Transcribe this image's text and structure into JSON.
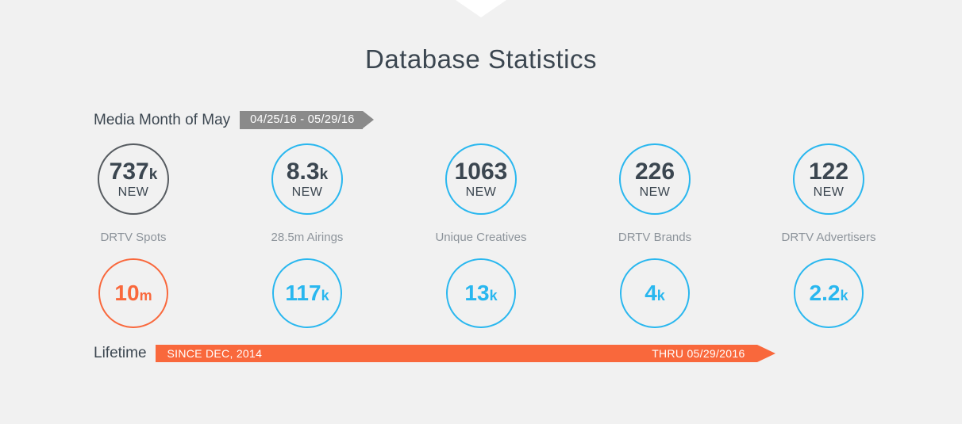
{
  "page": {
    "title": "Database Statistics"
  },
  "media_month": {
    "label": "Media Month of May",
    "date_range": "04/25/16 - 05/29/16"
  },
  "lifetime": {
    "label": "Lifetime",
    "since": "SINCE DEC, 2014",
    "thru": "THRU 05/29/2016"
  },
  "stats": {
    "columns": [
      {
        "label": "DRTV Spots",
        "monthly": {
          "value": "737",
          "suffix": "k",
          "caption": "NEW"
        },
        "lifetime": {
          "value": "10",
          "suffix": "m"
        }
      },
      {
        "label": "28.5m Airings",
        "monthly": {
          "value": "8.3",
          "suffix": "k",
          "caption": "NEW"
        },
        "lifetime": {
          "value": "117",
          "suffix": "k"
        }
      },
      {
        "label": "Unique Creatives",
        "monthly": {
          "value": "1063",
          "suffix": "",
          "caption": "NEW"
        },
        "lifetime": {
          "value": "13",
          "suffix": "k"
        }
      },
      {
        "label": "DRTV Brands",
        "monthly": {
          "value": "226",
          "suffix": "",
          "caption": "NEW"
        },
        "lifetime": {
          "value": "4",
          "suffix": "k"
        }
      },
      {
        "label": "DRTV Advertisers",
        "monthly": {
          "value": "122",
          "suffix": "",
          "caption": "NEW"
        },
        "lifetime": {
          "value": "2.2",
          "suffix": "k"
        }
      }
    ]
  },
  "chart_data": {
    "type": "table",
    "title": "Database Statistics",
    "categories": [
      "DRTV Spots",
      "28.5m Airings",
      "Unique Creatives",
      "DRTV Brands",
      "DRTV Advertisers"
    ],
    "series": [
      {
        "name": "Media Month of May (04/25/16 - 05/29/16), NEW",
        "values": [
          "737k",
          "8.3k",
          "1063",
          "226",
          "122"
        ]
      },
      {
        "name": "Lifetime (SINCE DEC, 2014 THRU 05/29/2016)",
        "values": [
          "10m",
          "117k",
          "13k",
          "4k",
          "2.2k"
        ]
      }
    ]
  },
  "colors": {
    "background": "#f1f1f1",
    "ink": "#3b4650",
    "muted": "#8d949b",
    "blue": "#29b7ef",
    "orange": "#f9683c",
    "circle-gray": "#575c61",
    "badge-gray": "#8a8a8a",
    "white": "#ffffff"
  }
}
